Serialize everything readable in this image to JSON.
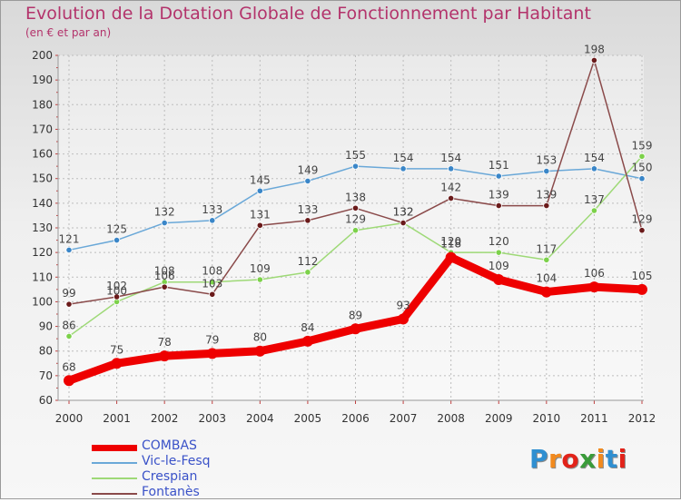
{
  "title": "Evolution de la Dotation Globale de Fonctionnement par Habitant",
  "subtitle": "(en € et par an)",
  "logo": {
    "text": "Proxiti",
    "letter_colors": [
      "#2f8fd1",
      "#f28a1e",
      "#e2231a",
      "#3a9b3a",
      "#f28a1e",
      "#2f8fd1",
      "#e2231a"
    ]
  },
  "chart_data": {
    "type": "line",
    "title": "Evolution de la Dotation Globale de Fonctionnement par Habitant",
    "subtitle": "(en € et par an)",
    "x": [
      "2000",
      "2001",
      "2002",
      "2003",
      "2004",
      "2005",
      "2006",
      "2007",
      "2008",
      "2009",
      "2010",
      "2011",
      "2012"
    ],
    "ylim": [
      60,
      200
    ],
    "yticks": [
      "60",
      "70",
      "80",
      "90",
      "100",
      "110",
      "120",
      "130",
      "140",
      "150",
      "160",
      "170",
      "180",
      "190",
      "200"
    ],
    "ystep": 10,
    "grid": true,
    "legend_position": "bottom-left",
    "series": [
      {
        "name": "COMBAS",
        "color": "#ee0000",
        "emphasis": true,
        "values": [
          68,
          75,
          78,
          79,
          80,
          84,
          89,
          93,
          118,
          109,
          104,
          106,
          105
        ],
        "labels": [
          "68",
          "75",
          "78",
          "79",
          "80",
          "84",
          "89",
          "93",
          "118",
          "109",
          "104",
          "106",
          "105"
        ]
      },
      {
        "name": "Vic-le-Fesq",
        "color": "#6aa8d8",
        "marker": "#3a86c8",
        "values": [
          121,
          125,
          132,
          133,
          145,
          149,
          155,
          154,
          154,
          151,
          153,
          154,
          150
        ],
        "labels": [
          "121",
          "125",
          "132",
          "133",
          "145",
          "149",
          "155",
          "154",
          "154",
          "151",
          "153",
          "154",
          "150"
        ]
      },
      {
        "name": "Crespian",
        "color": "#9ed977",
        "marker": "#7cd14a",
        "values": [
          86,
          100,
          108,
          108,
          109,
          112,
          129,
          132,
          120,
          120,
          117,
          137,
          159
        ],
        "labels": [
          "86",
          "100",
          "108",
          "108",
          "109",
          "112",
          "129",
          "132",
          "120",
          "120",
          "117",
          "137",
          "159"
        ]
      },
      {
        "name": "Fontanès",
        "color": "#8a4a4a",
        "marker": "#6a1a1a",
        "values": [
          99,
          102,
          106,
          103,
          131,
          133,
          138,
          132,
          142,
          139,
          139,
          198,
          129
        ],
        "labels": [
          "99",
          "102",
          "106",
          "103",
          "131",
          "133",
          "138",
          "132",
          "142",
          "139",
          "139",
          "198",
          "129"
        ]
      }
    ]
  }
}
